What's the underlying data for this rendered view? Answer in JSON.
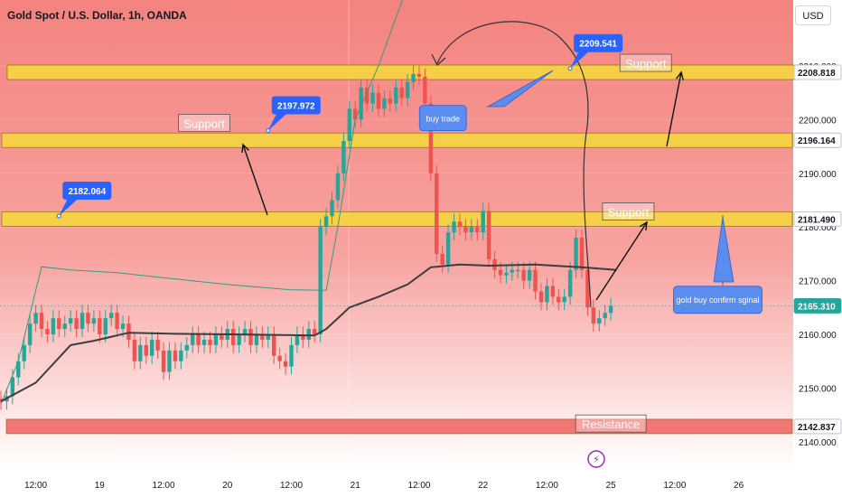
{
  "title": "Gold Spot / U.S. Dollar, 1h, OANDA",
  "currency_button": "USD",
  "colors": {
    "bg_top": "#f4837f",
    "bg_bottom": "#ffffff",
    "up": "#26a69a",
    "down": "#ef5350",
    "zone_yellow": "#f5d442",
    "zone_red": "#f26b6b",
    "callout_blue": "#2962ff",
    "callout_soft": "#5b8cf0",
    "last_price": "#26a69a"
  },
  "chart_data": {
    "type": "candlestick",
    "y_ticks": [
      2210,
      2200,
      2190,
      2180,
      2170,
      2160,
      2150,
      2140
    ],
    "y_tick_labels": [
      "2210.000",
      "2200.000",
      "2190.000",
      "2180.000",
      "2170.000",
      "2160.000",
      "2150.000",
      "2140.000"
    ],
    "x_tick_labels": [
      "12:00",
      "19",
      "12:00",
      "20",
      "12:00",
      "21",
      "12:00",
      "22",
      "12:00",
      "25",
      "12:00",
      "26"
    ],
    "x_tick_bars": [
      6,
      17,
      28,
      39,
      50,
      61,
      72,
      83,
      94,
      105,
      116,
      127
    ],
    "price_labels": [
      {
        "text": "2208.818",
        "value": 2208.818,
        "style": "white"
      },
      {
        "text": "2196.164",
        "value": 2196.164,
        "style": "white"
      },
      {
        "text": "2181.490",
        "value": 2181.49,
        "style": "white"
      },
      {
        "text": "2165.310",
        "value": 2165.31,
        "style": "last"
      },
      {
        "text": "2142.837",
        "value": 2142.837,
        "style": "white"
      }
    ],
    "zones": [
      {
        "type": "support",
        "value": 2208.818,
        "color": "yellow"
      },
      {
        "type": "support",
        "value": 2196.164,
        "color": "yellow"
      },
      {
        "type": "support",
        "value": 2181.49,
        "color": "yellow"
      },
      {
        "type": "resistance",
        "value": 2142.837,
        "color": "red"
      }
    ],
    "candles_open_start": 2148.0,
    "candles_close": [
      2147.5,
      2148.5,
      2152,
      2155,
      2158,
      2162,
      2164,
      2161,
      2160,
      2163,
      2161,
      2162,
      2163,
      2161,
      2164,
      2162,
      2163,
      2160,
      2163,
      2164,
      2161,
      2162,
      2159,
      2155,
      2158,
      2156,
      2159,
      2157,
      2153,
      2157,
      2155,
      2157,
      2158,
      2160,
      2158,
      2159,
      2158,
      2160,
      2159,
      2161,
      2158,
      2160,
      2161,
      2158,
      2160,
      2159,
      2160,
      2156,
      2155,
      2154,
      2158,
      2160,
      2159,
      2161,
      2160,
      2180,
      2182,
      2185,
      2190,
      2196,
      2202,
      2200,
      2206,
      2203,
      2205,
      2202,
      2204,
      2203,
      2206,
      2204,
      2207,
      2208.5,
      2208,
      2203,
      2190,
      2175,
      2173,
      2179,
      2181,
      2180,
      2179,
      2180,
      2179,
      2183,
      2174,
      2172,
      2171,
      2171.5,
      2172,
      2172,
      2170,
      2172,
      2168,
      2166,
      2169,
      2167,
      2166,
      2167,
      2172,
      2178,
      2172,
      2165,
      2162,
      2163,
      2164,
      2165.31
    ],
    "ma_dark_points": [
      [
        0,
        2147.5
      ],
      [
        6,
        2151
      ],
      [
        12,
        2158
      ],
      [
        16,
        2158.8
      ],
      [
        22,
        2160.3
      ],
      [
        30,
        2160.1
      ],
      [
        40,
        2160
      ],
      [
        54,
        2159.8
      ],
      [
        56,
        2161
      ],
      [
        60,
        2165
      ],
      [
        65,
        2167
      ],
      [
        70,
        2169.3
      ],
      [
        74,
        2172.5
      ],
      [
        79,
        2173
      ],
      [
        84,
        2172.8
      ],
      [
        92,
        2173
      ],
      [
        100,
        2172.5
      ],
      [
        106,
        2172
      ]
    ],
    "ma_green_points": [
      [
        0,
        2147
      ],
      [
        3,
        2155
      ],
      [
        7,
        2172.6
      ],
      [
        12,
        2172
      ],
      [
        20,
        2171.5
      ],
      [
        30,
        2170.3
      ],
      [
        40,
        2169.2
      ],
      [
        50,
        2168.3
      ],
      [
        56,
        2168.2
      ],
      [
        58,
        2180
      ],
      [
        61,
        2200
      ],
      [
        65,
        2210
      ],
      [
        69,
        2222
      ],
      [
        70,
        2228
      ]
    ],
    "callouts": [
      {
        "text": "2182.064",
        "value": 2182.064,
        "bar": 10
      },
      {
        "text": "2197.972",
        "value": 2197.972,
        "bar": 46
      },
      {
        "text": "2209.541",
        "value": 2209.541,
        "bar": 98
      }
    ],
    "support_labels": [
      {
        "text": "Support",
        "value": 2199.3,
        "bar": 35
      },
      {
        "text": "Support",
        "value": 2210.5,
        "bar": 111
      },
      {
        "text": "Support",
        "value": 2182.8,
        "bar": 108
      }
    ],
    "resistance_label": {
      "text": "Resistance",
      "value": 2143.3,
      "bar": 105
    },
    "notes": [
      {
        "text": "buy trade",
        "value": 2200.3,
        "bar": 82
      },
      {
        "text": "gold buy confirm sginal",
        "value": 2166.6,
        "bar": 122
      }
    ]
  }
}
